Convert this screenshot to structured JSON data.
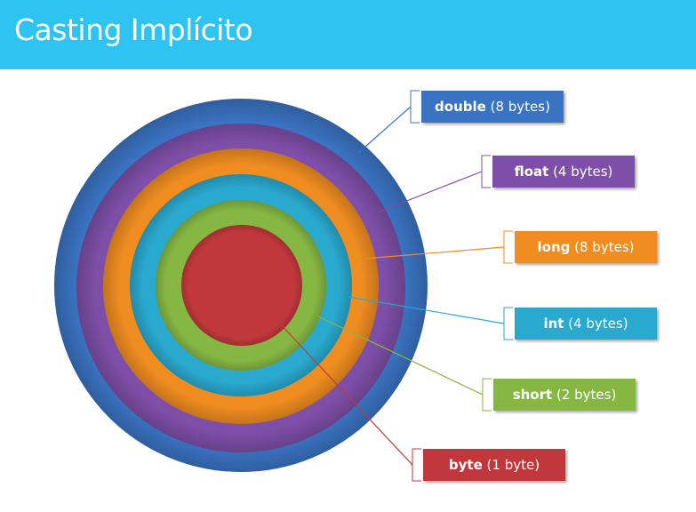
{
  "title": "Casting Implícito",
  "layers": [
    {
      "type": "double",
      "size": "(8 bytes)",
      "color": "#3a73c2"
    },
    {
      "type": "float",
      "size": "(4 bytes)",
      "color": "#7e4fa8"
    },
    {
      "type": "long",
      "size": "(8 bytes)",
      "color": "#f08d21"
    },
    {
      "type": "int",
      "size": "(4 bytes)",
      "color": "#2aa9cf"
    },
    {
      "type": "short",
      "size": "(2 bytes)",
      "color": "#86b743"
    },
    {
      "type": "byte",
      "size": "(1 byte)",
      "color": "#c0383b"
    }
  ]
}
